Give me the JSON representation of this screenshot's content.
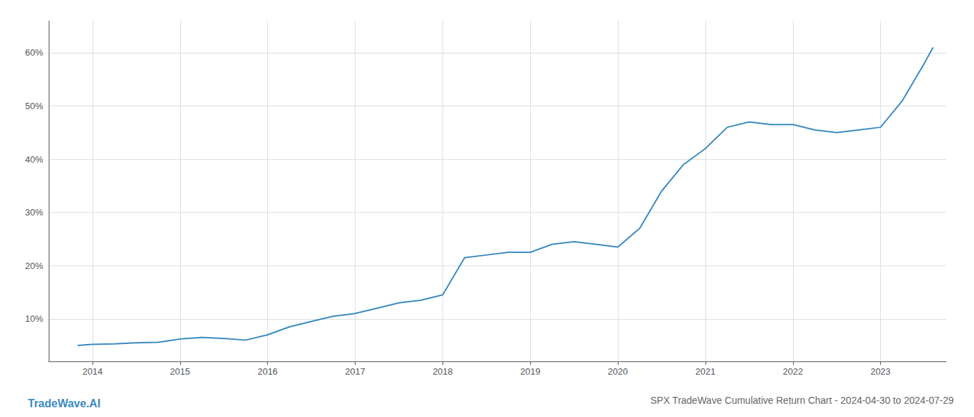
{
  "chart_data": {
    "type": "line",
    "title": "SPX TradeWave Cumulative Return Chart - 2024-04-30 to 2024-07-29",
    "annotations": [
      "TradeWave.AI"
    ],
    "color": "#3a8abf",
    "x": [
      2013.83,
      2014.0,
      2014.25,
      2014.5,
      2014.75,
      2015.0,
      2015.25,
      2015.5,
      2015.75,
      2016.0,
      2016.25,
      2016.5,
      2016.75,
      2017.0,
      2017.25,
      2017.5,
      2017.75,
      2018.0,
      2018.25,
      2018.5,
      2018.75,
      2019.0,
      2019.25,
      2019.5,
      2019.75,
      2020.0,
      2020.25,
      2020.5,
      2020.75,
      2021.0,
      2021.25,
      2021.5,
      2021.75,
      2022.0,
      2022.25,
      2022.5,
      2022.75,
      2023.0,
      2023.25,
      2023.5,
      2023.6
    ],
    "values": [
      5.0,
      5.2,
      5.3,
      5.5,
      5.6,
      6.2,
      6.5,
      6.3,
      6.0,
      7.0,
      8.5,
      9.5,
      10.5,
      11.0,
      12.0,
      13.0,
      13.5,
      14.5,
      21.5,
      22.0,
      22.5,
      22.5,
      24.0,
      24.5,
      24.0,
      23.5,
      27.0,
      34.0,
      39.0,
      42.0,
      46.0,
      47.0,
      46.5,
      46.5,
      45.5,
      45.0,
      45.5,
      46.0,
      51.0,
      58.0,
      61.0
    ],
    "xlim": [
      2013.5,
      2023.75
    ],
    "ylim": [
      2,
      66
    ],
    "xticks": [
      2014,
      2015,
      2016,
      2017,
      2018,
      2019,
      2020,
      2021,
      2022,
      2023
    ],
    "yticks": [
      {
        "value": 10,
        "label": "10%"
      },
      {
        "value": 20,
        "label": "20%"
      },
      {
        "value": 30,
        "label": "30%"
      },
      {
        "value": 40,
        "label": "40%"
      },
      {
        "value": 50,
        "label": "50%"
      },
      {
        "value": 60,
        "label": "60%"
      }
    ],
    "grid": true
  }
}
